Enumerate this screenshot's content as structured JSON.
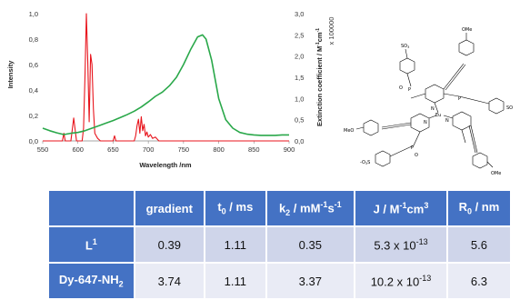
{
  "chart_data": {
    "type": "line",
    "xlabel": "Wavelength /nm",
    "ylabel_left": "Intensity",
    "ylabel_right": "Extinction coefficient / M",
    "ylabel_right_sup": "-1",
    "ylabel_right_mid": "cm",
    "ylabel_right_sup2": "-1",
    "right_multiplier": "x 100000",
    "xlim": [
      550,
      900
    ],
    "ylim_left": [
      0,
      1
    ],
    "ylim_right": [
      0,
      3
    ],
    "x_ticks": [
      "550",
      "600",
      "650",
      "700",
      "750",
      "800",
      "850",
      "900"
    ],
    "y_left_ticks": [
      "0,0",
      "0,2",
      "0,4",
      "0,6",
      "0,8",
      "1,0"
    ],
    "y_right_ticks": [
      "0,0",
      "0,5",
      "1,0",
      "1,5",
      "2,0",
      "2,5",
      "3,0"
    ],
    "grid": false,
    "series": [
      {
        "axis": "left",
        "color": "#e8141c",
        "points": [
          [
            550,
            0
          ],
          [
            578,
            0
          ],
          [
            580,
            0.06
          ],
          [
            582,
            0
          ],
          [
            590,
            0
          ],
          [
            592,
            0.09
          ],
          [
            594,
            0.18
          ],
          [
            596,
            0.09
          ],
          [
            598,
            0
          ],
          [
            606,
            0
          ],
          [
            608,
            0.1
          ],
          [
            610,
            0.5
          ],
          [
            612,
            1.0
          ],
          [
            614,
            0.62
          ],
          [
            616,
            0.15
          ],
          [
            618,
            0.68
          ],
          [
            620,
            0.6
          ],
          [
            622,
            0.25
          ],
          [
            624,
            0.06
          ],
          [
            628,
            0.02
          ],
          [
            632,
            0
          ],
          [
            650,
            0
          ],
          [
            652,
            0.04
          ],
          [
            654,
            0
          ],
          [
            680,
            0
          ],
          [
            682,
            0.04
          ],
          [
            684,
            0.12
          ],
          [
            686,
            0.17
          ],
          [
            688,
            0.06
          ],
          [
            690,
            0.19
          ],
          [
            692,
            0.08
          ],
          [
            694,
            0.13
          ],
          [
            696,
            0.04
          ],
          [
            698,
            0.07
          ],
          [
            700,
            0.03
          ],
          [
            703,
            0.05
          ],
          [
            706,
            0.02
          ],
          [
            710,
            0.03
          ],
          [
            715,
            0
          ],
          [
            900,
            0
          ]
        ]
      },
      {
        "axis": "right",
        "color": "#2aa84a",
        "points": [
          [
            550,
            0.3
          ],
          [
            560,
            0.24
          ],
          [
            570,
            0.19
          ],
          [
            580,
            0.15
          ],
          [
            590,
            0.18
          ],
          [
            600,
            0.2
          ],
          [
            610,
            0.24
          ],
          [
            620,
            0.3
          ],
          [
            630,
            0.36
          ],
          [
            640,
            0.42
          ],
          [
            650,
            0.48
          ],
          [
            660,
            0.55
          ],
          [
            670,
            0.62
          ],
          [
            680,
            0.7
          ],
          [
            690,
            0.8
          ],
          [
            700,
            0.92
          ],
          [
            710,
            1.05
          ],
          [
            720,
            1.15
          ],
          [
            730,
            1.3
          ],
          [
            740,
            1.5
          ],
          [
            750,
            1.8
          ],
          [
            760,
            2.15
          ],
          [
            770,
            2.45
          ],
          [
            777,
            2.5
          ],
          [
            782,
            2.4
          ],
          [
            790,
            1.9
          ],
          [
            800,
            1.0
          ],
          [
            810,
            0.5
          ],
          [
            820,
            0.3
          ],
          [
            830,
            0.2
          ],
          [
            840,
            0.16
          ],
          [
            850,
            0.14
          ],
          [
            860,
            0.13
          ],
          [
            870,
            0.13
          ],
          [
            880,
            0.13
          ],
          [
            890,
            0.14
          ],
          [
            900,
            0.14
          ]
        ]
      }
    ]
  },
  "molecule": {
    "ome_top": "OMe",
    "ome_bottom": "OMe",
    "meo_left": "MeO",
    "so3_top": "SO",
    "so3_right": "SO",
    "so3_left": "-O",
    "so3_left_tail": "S",
    "eu": "Eu",
    "n": "N",
    "o": "O",
    "p": "P"
  },
  "table": {
    "columns": [
      {
        "pre": "",
        "base": "gradient",
        "sup": "",
        "sub": "",
        "post": ""
      },
      {
        "pre": "",
        "base": "t",
        "sub": "0",
        "post": " / ms"
      },
      {
        "pre": "",
        "base": "k",
        "sub": "2",
        "post": " / mM",
        "sup": "-1",
        "post2": "s",
        "sup2": "-1"
      },
      {
        "pre": "",
        "base": "J / M",
        "sup": "-1",
        "post": "cm",
        "sup2": "3"
      },
      {
        "pre": "",
        "base": "R",
        "sub": "0",
        "post": " / nm"
      }
    ],
    "rows": [
      {
        "label": "L",
        "label_sup": "1",
        "label_sub": "",
        "cells": [
          {
            "v": "0.39"
          },
          {
            "v": "1.11"
          },
          {
            "v": "0.35"
          },
          {
            "v": "5.3 x 10",
            "sup": "-13"
          },
          {
            "v": "5.6"
          }
        ]
      },
      {
        "label": "Dy-647-NH",
        "label_sup": "",
        "label_sub": "2",
        "cells": [
          {
            "v": "3.74"
          },
          {
            "v": "1.11"
          },
          {
            "v": "3.37"
          },
          {
            "v": "10.2 x 10",
            "sup": "-13"
          },
          {
            "v": "6.3"
          }
        ]
      }
    ]
  }
}
